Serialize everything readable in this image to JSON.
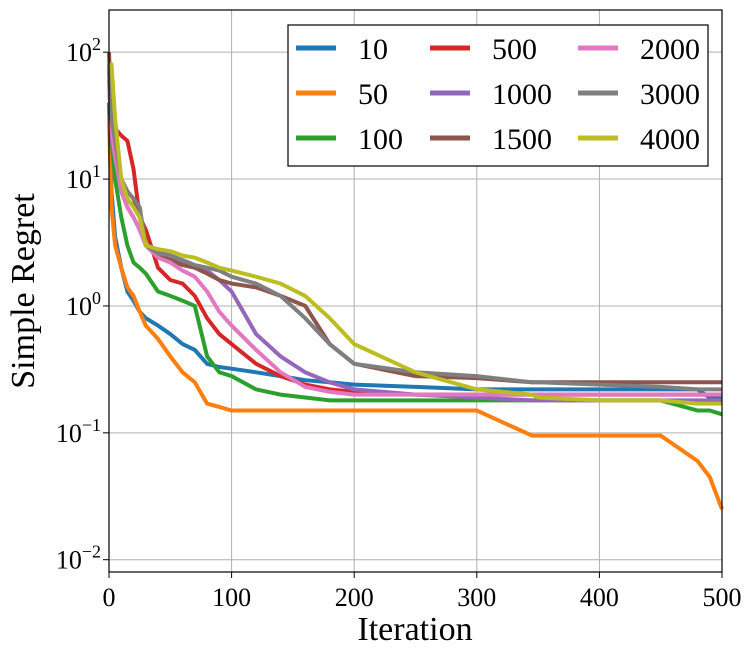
{
  "chart_data": {
    "type": "line",
    "xlabel": "Iteration",
    "ylabel": "Simple Regret",
    "xlim": [
      0,
      500
    ],
    "xticks": [
      0,
      100,
      200,
      300,
      400,
      500
    ],
    "ylim": [
      0.008,
      215
    ],
    "log_y": true,
    "grid": true,
    "legend": "upper right",
    "legend_columns": 3,
    "yticks": [
      {
        "value": 0.01,
        "label": "10^-2"
      },
      {
        "value": 0.1,
        "label": "10^-1"
      },
      {
        "value": 1,
        "label": "10^0"
      },
      {
        "value": 10,
        "label": "10^1"
      },
      {
        "value": 100,
        "label": "10^2"
      }
    ],
    "x": [
      0,
      2,
      5,
      10,
      15,
      20,
      25,
      30,
      40,
      50,
      60,
      70,
      80,
      90,
      100,
      120,
      140,
      160,
      180,
      200,
      250,
      300,
      345,
      350,
      400,
      450,
      480,
      490,
      500
    ],
    "series": [
      {
        "name": "10",
        "color": "#1f77b4",
        "values": [
          40,
          8,
          3.5,
          2,
          1.3,
          1.1,
          0.9,
          0.8,
          0.7,
          0.6,
          0.5,
          0.45,
          0.35,
          0.33,
          0.32,
          0.3,
          0.28,
          0.26,
          0.25,
          0.24,
          0.23,
          0.22,
          0.22,
          0.22,
          0.22,
          0.22,
          0.22,
          0.19,
          0.19
        ]
      },
      {
        "name": "50",
        "color": "#ff7f0e",
        "values": [
          30,
          6,
          3,
          2,
          1.4,
          1.2,
          0.9,
          0.7,
          0.55,
          0.4,
          0.3,
          0.25,
          0.17,
          0.16,
          0.15,
          0.15,
          0.15,
          0.15,
          0.15,
          0.15,
          0.15,
          0.15,
          0.095,
          0.095,
          0.095,
          0.095,
          0.06,
          0.045,
          0.025
        ]
      },
      {
        "name": "100",
        "color": "#2ca02c",
        "values": [
          60,
          20,
          10,
          5,
          3,
          2.2,
          2,
          1.8,
          1.3,
          1.2,
          1.1,
          1.0,
          0.4,
          0.3,
          0.28,
          0.22,
          0.2,
          0.19,
          0.18,
          0.18,
          0.18,
          0.18,
          0.18,
          0.18,
          0.18,
          0.18,
          0.15,
          0.15,
          0.14
        ]
      },
      {
        "name": "500",
        "color": "#d62728",
        "values": [
          80,
          30,
          25,
          22,
          20,
          12,
          5,
          4,
          2,
          1.6,
          1.5,
          1.2,
          0.8,
          0.6,
          0.5,
          0.35,
          0.28,
          0.24,
          0.22,
          0.21,
          0.2,
          0.2,
          0.2,
          0.2,
          0.2,
          0.2,
          0.2,
          0.2,
          0.2
        ]
      },
      {
        "name": "1000",
        "color": "#9467bd",
        "values": [
          70,
          20,
          15,
          8,
          6,
          5,
          4,
          3,
          2.7,
          2.5,
          2.2,
          2,
          1.9,
          1.6,
          1.3,
          0.6,
          0.4,
          0.3,
          0.25,
          0.22,
          0.2,
          0.19,
          0.18,
          0.18,
          0.18,
          0.18,
          0.18,
          0.18,
          0.18
        ]
      },
      {
        "name": "1500",
        "color": "#8c564b",
        "values": [
          100,
          30,
          15,
          10,
          8,
          7,
          5,
          3,
          2.5,
          2.3,
          2.1,
          2.0,
          1.8,
          1.6,
          1.5,
          1.4,
          1.2,
          1.0,
          0.5,
          0.35,
          0.28,
          0.27,
          0.25,
          0.25,
          0.25,
          0.25,
          0.25,
          0.25,
          0.25
        ]
      },
      {
        "name": "2000",
        "color": "#e377c2",
        "values": [
          60,
          25,
          15,
          8,
          6,
          5,
          4,
          3,
          2.4,
          2.2,
          1.9,
          1.7,
          1.3,
          0.9,
          0.7,
          0.45,
          0.3,
          0.23,
          0.21,
          0.2,
          0.2,
          0.2,
          0.2,
          0.2,
          0.2,
          0.2,
          0.2,
          0.2,
          0.2
        ]
      },
      {
        "name": "3000",
        "color": "#7f7f7f",
        "values": [
          80,
          30,
          20,
          10,
          8,
          7,
          6,
          3,
          2.6,
          2.5,
          2.3,
          2.1,
          2.0,
          1.9,
          1.7,
          1.5,
          1.2,
          0.8,
          0.5,
          0.35,
          0.3,
          0.28,
          0.25,
          0.25,
          0.24,
          0.23,
          0.22,
          0.22,
          0.22
        ]
      },
      {
        "name": "4000",
        "color": "#bcbd22",
        "values": [
          80,
          80,
          30,
          10,
          7,
          6,
          5,
          3,
          2.8,
          2.7,
          2.5,
          2.4,
          2.2,
          2.0,
          1.9,
          1.7,
          1.5,
          1.2,
          0.8,
          0.5,
          0.3,
          0.22,
          0.2,
          0.19,
          0.18,
          0.18,
          0.17,
          0.17,
          0.17
        ]
      }
    ]
  }
}
